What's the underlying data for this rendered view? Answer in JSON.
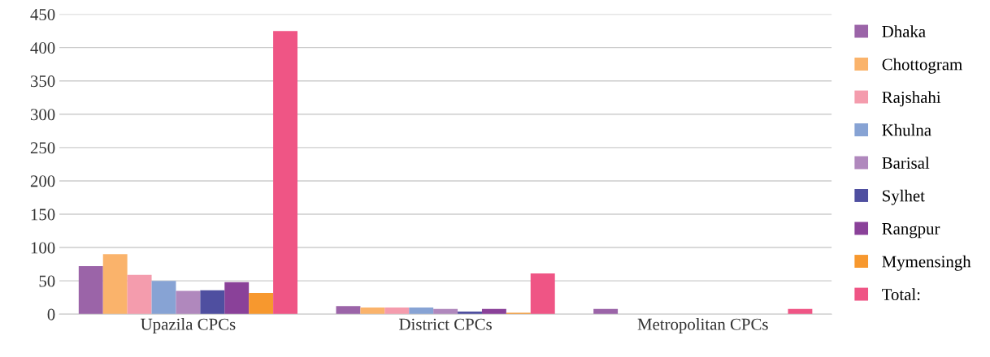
{
  "chart_data": {
    "type": "bar",
    "categories": [
      "Upazila CPCs",
      "District CPCs",
      "Metropolitan CPCs"
    ],
    "series": [
      {
        "name": "Dhaka",
        "color": "#9b64a8",
        "values": [
          72,
          12,
          8
        ]
      },
      {
        "name": "Chottogram",
        "color": "#fab36b",
        "values": [
          90,
          10,
          0
        ]
      },
      {
        "name": "Rajshahi",
        "color": "#f49cad",
        "values": [
          59,
          10,
          0
        ]
      },
      {
        "name": "Khulna",
        "color": "#87a3d4",
        "values": [
          50,
          10,
          0
        ]
      },
      {
        "name": "Barisal",
        "color": "#b088bd",
        "values": [
          35,
          8,
          0
        ]
      },
      {
        "name": "Sylhet",
        "color": "#4f4fa0",
        "values": [
          36,
          4,
          0
        ]
      },
      {
        "name": "Rangpur",
        "color": "#8a4199",
        "values": [
          48,
          8,
          0
        ]
      },
      {
        "name": "Mymensingh",
        "color": "#f7982e",
        "values": [
          32,
          2,
          0
        ]
      },
      {
        "name": "Total:",
        "color": "#ef5585",
        "values": [
          425,
          61,
          8
        ]
      }
    ],
    "ylim": [
      0,
      450
    ],
    "yticks": [
      0,
      50,
      100,
      150,
      200,
      250,
      300,
      350,
      400,
      450
    ],
    "grid": "y",
    "legend": "right"
  }
}
